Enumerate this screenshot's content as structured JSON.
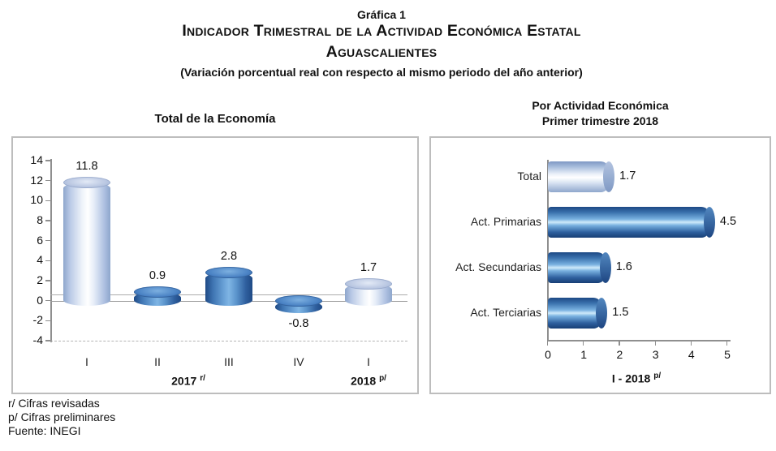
{
  "header": {
    "graphic_label": "Gráfica 1",
    "title_line1": "Indicador Trimestral de la Actividad Económica Estatal",
    "title_line2": "Aguascalientes",
    "subtitle": "(Variación porcentual real con respecto al mismo periodo del año anterior)"
  },
  "footnotes": {
    "line1": "r/ Cifras revisadas",
    "line2": "p/ Cifras preliminares",
    "line3": "Fuente: INEGI"
  },
  "chart_data": [
    {
      "type": "bar",
      "title": "Total de la Economía",
      "categories": [
        "I",
        "II",
        "III",
        "IV",
        "I"
      ],
      "values": [
        11.8,
        0.9,
        2.8,
        -0.8,
        1.7
      ],
      "styles": [
        "light",
        "blue",
        "blue",
        "blue",
        "light"
      ],
      "yticks": [
        14,
        12,
        10,
        8,
        6,
        4,
        2,
        0,
        -2,
        -4
      ],
      "ylim": [
        -4,
        14
      ],
      "group_labels": [
        {
          "text": "2017",
          "sup": "r/"
        },
        {
          "text": "2018",
          "sup": "p/"
        }
      ],
      "xlabel": "",
      "ylabel": "",
      "grid": "solid zero line, 3d floor line above zero, dashed line at -4",
      "legend": "none",
      "bar_shape": "3d-cylinder-vertical"
    },
    {
      "type": "bar-horizontal",
      "title": "Por Actividad Económica",
      "subtitle": "Primer trimestre 2018",
      "categories": [
        "Total",
        "Act. Primarias",
        "Act. Secundarias",
        "Act. Terciarias"
      ],
      "values": [
        1.7,
        4.5,
        1.6,
        1.5
      ],
      "styles": [
        "light",
        "blue",
        "blue",
        "blue"
      ],
      "xticks": [
        0,
        1,
        2,
        3,
        4,
        5
      ],
      "xlim": [
        0,
        5
      ],
      "xlabel": {
        "text": "I - 2018",
        "sup": "p/"
      },
      "ylabel": "",
      "grid": "off",
      "legend": "none",
      "bar_shape": "3d-cylinder-horizontal"
    }
  ],
  "colors": {
    "bar_blue": "#2f689f",
    "bar_blue_highlight": "#cfeafa",
    "bar_light": "#c5d3ea",
    "bar_light_highlight": "#ffffff",
    "axis_gray": "#8f8f8f",
    "panel_border": "#bdbdbd",
    "text": "#111111"
  }
}
